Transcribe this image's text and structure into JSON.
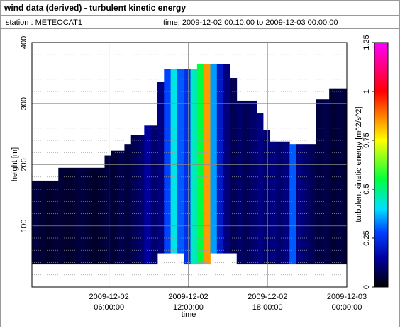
{
  "chart_data": {
    "type": "heatmap",
    "title": "wind data (derived) - turbulent kinetic energy",
    "station": "station : METEOCAT1",
    "time_range": "time: 2009-12-02 00:10:00 to 2009-12-03 00:00:00",
    "xlabel": "time",
    "ylabel": "height [m]",
    "colorbar_label": "turbulent kinetic energy [m^2/s^2]",
    "xlim": [
      "2009-12-02 00:10:00",
      "2009-12-03 00:00:00"
    ],
    "xticks": [
      {
        "value": "2009-12-02 06:00:00",
        "label": [
          "2009-12-02",
          "06:00:00"
        ]
      },
      {
        "value": "2009-12-02 12:00:00",
        "label": [
          "2009-12-02",
          "12:00:00"
        ]
      },
      {
        "value": "2009-12-02 18:00:00",
        "label": [
          "2009-12-02",
          "18:00:00"
        ]
      },
      {
        "value": "2009-12-03 00:00:00",
        "label": [
          "2009-12-03",
          "00:00:00"
        ]
      }
    ],
    "ylim": [
      0,
      400
    ],
    "yticks": [
      100,
      200,
      300,
      400
    ],
    "yminorticks": [
      20,
      40,
      60,
      80,
      120,
      140,
      160,
      180,
      220,
      240,
      260,
      280,
      320,
      340,
      360,
      380
    ],
    "grid": true,
    "clim": [
      0,
      1.25
    ],
    "cticks": [
      0,
      0.25,
      0.5,
      0.75,
      1,
      1.25
    ],
    "colormap": [
      [
        0,
        "#000000"
      ],
      [
        0.15,
        "#0000a0"
      ],
      [
        0.28,
        "#0040ff"
      ],
      [
        0.4,
        "#00e0ff"
      ],
      [
        0.55,
        "#00ff40"
      ],
      [
        0.75,
        "#ffff00"
      ],
      [
        1,
        "#ff0000"
      ],
      [
        1.25,
        "#ff00ff"
      ]
    ],
    "time_edges": [
      "2009-12-02 00:10:00",
      "2009-12-02 00:40:00",
      "2009-12-02 01:10:00",
      "2009-12-02 01:40:00",
      "2009-12-02 02:10:00",
      "2009-12-02 02:40:00",
      "2009-12-02 03:10:00",
      "2009-12-02 03:40:00",
      "2009-12-02 04:10:00",
      "2009-12-02 04:40:00",
      "2009-12-02 05:10:00",
      "2009-12-02 05:40:00",
      "2009-12-02 06:10:00",
      "2009-12-02 06:40:00",
      "2009-12-02 07:10:00",
      "2009-12-02 07:40:00",
      "2009-12-02 08:10:00",
      "2009-12-02 08:40:00",
      "2009-12-02 09:10:00",
      "2009-12-02 09:40:00",
      "2009-12-02 10:10:00",
      "2009-12-02 10:40:00",
      "2009-12-02 11:10:00",
      "2009-12-02 11:40:00",
      "2009-12-02 12:10:00",
      "2009-12-02 12:40:00",
      "2009-12-02 13:10:00",
      "2009-12-02 13:40:00",
      "2009-12-02 14:10:00",
      "2009-12-02 14:40:00",
      "2009-12-02 15:10:00",
      "2009-12-02 15:40:00",
      "2009-12-02 16:10:00",
      "2009-12-02 16:40:00",
      "2009-12-02 17:10:00",
      "2009-12-02 17:40:00",
      "2009-12-02 18:10:00",
      "2009-12-02 18:40:00",
      "2009-12-02 19:10:00",
      "2009-12-02 19:40:00",
      "2009-12-02 20:10:00",
      "2009-12-02 20:40:00",
      "2009-12-02 21:10:00",
      "2009-12-02 21:40:00",
      "2009-12-02 22:10:00",
      "2009-12-02 22:40:00",
      "2009-12-02 23:10:00",
      "2009-12-02 23:40:00",
      "2009-12-03 00:00:00"
    ],
    "tops": [
      174,
      174,
      174,
      174,
      195,
      195,
      195,
      195,
      195,
      195,
      195,
      215,
      223,
      223,
      234,
      249,
      249,
      264,
      264,
      336,
      356,
      356,
      356,
      356,
      356,
      365,
      365,
      365,
      365,
      365,
      342,
      305,
      305,
      305,
      284,
      257,
      238,
      238,
      238,
      234,
      234,
      234,
      234,
      307,
      307,
      325,
      325,
      325
    ],
    "bottoms": [
      37,
      37,
      37,
      37,
      37,
      37,
      37,
      37,
      37,
      37,
      37,
      37,
      37,
      37,
      37,
      37,
      37,
      37,
      37,
      55,
      55,
      55,
      55,
      37,
      37,
      37,
      37,
      55,
      55,
      55,
      55,
      37,
      37,
      37,
      37,
      37,
      37,
      37,
      37,
      37,
      37,
      37,
      37,
      37,
      37,
      37,
      37,
      37
    ],
    "values": [
      0.06,
      0.05,
      0.04,
      0.05,
      0.05,
      0.04,
      0.05,
      0.06,
      0.05,
      0.04,
      0.05,
      0.06,
      0.05,
      0.07,
      0.06,
      0.08,
      0.1,
      0.15,
      0.1,
      0.12,
      0.28,
      0.42,
      0.3,
      0.25,
      0.45,
      0.55,
      0.85,
      0.35,
      0.2,
      0.12,
      0.08,
      0.1,
      0.08,
      0.1,
      0.12,
      0.1,
      0.12,
      0.1,
      0.12,
      0.3,
      0.12,
      0.1,
      0.08,
      0.06,
      0.07,
      0.05,
      0.06,
      0.05
    ]
  }
}
